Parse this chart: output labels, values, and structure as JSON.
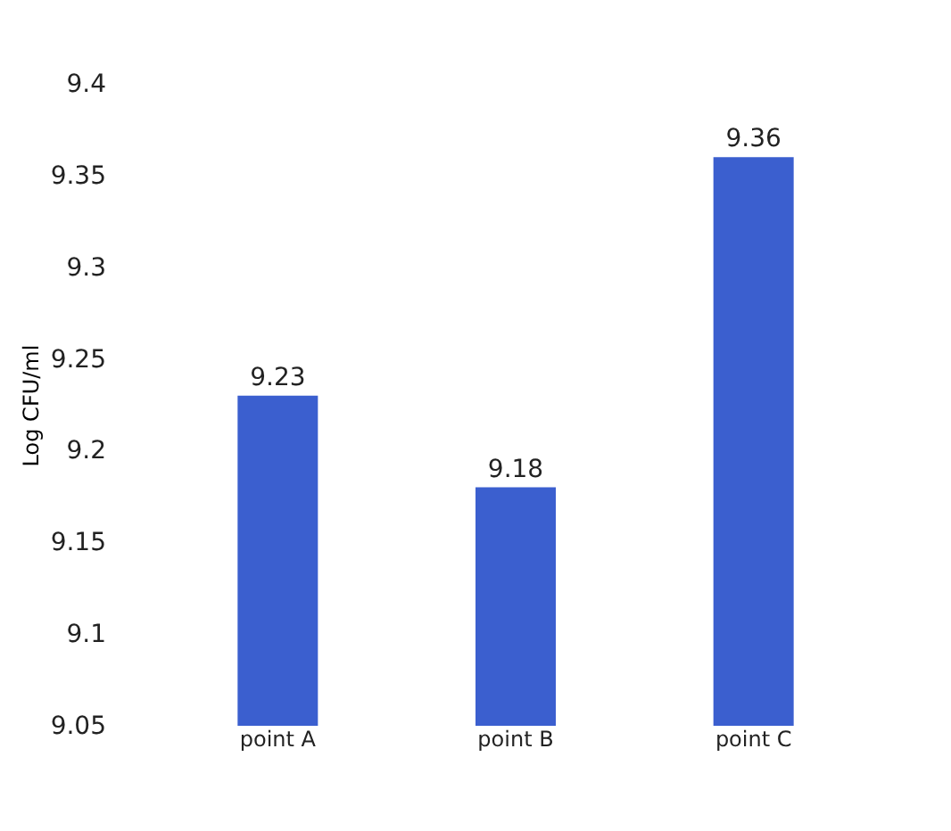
{
  "chart_data": {
    "type": "bar",
    "ylabel": "Log CFU/ml",
    "categories": [
      "point A",
      "point B",
      "point C"
    ],
    "values": [
      9.23,
      9.18,
      9.36
    ],
    "color": "#3b5fcf",
    "ylim": [
      9.05,
      9.4
    ],
    "yticks": [
      9.05,
      9.1,
      9.15,
      9.2,
      9.25,
      9.3,
      9.35,
      9.4
    ],
    "data_labels": true,
    "grid": false
  }
}
